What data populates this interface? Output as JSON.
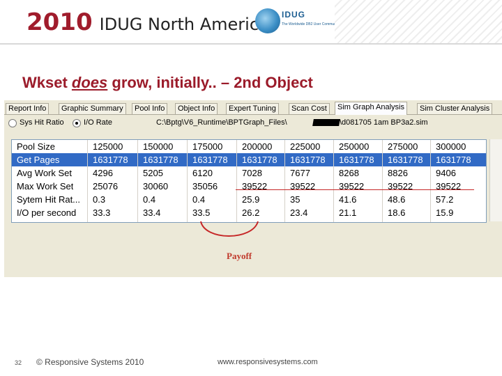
{
  "header": {
    "year": "2010",
    "conference": "IDUG North America",
    "logo_text": "IDUG",
    "logo_tagline": "The Worldwide DB2 User Community"
  },
  "slide": {
    "title_prefix": "Wkset ",
    "title_emphasis": "does",
    "title_suffix": " grow, initially.. – 2nd Object",
    "annotation": "Payoff"
  },
  "app": {
    "tabs": [
      {
        "label": "Report Info"
      },
      {
        "label": "Graphic Summary"
      },
      {
        "label": "Pool Info"
      },
      {
        "label": "Object Info"
      },
      {
        "label": "Expert Tuning"
      },
      {
        "label": "Scan Cost"
      },
      {
        "label": "Sim Graph Analysis"
      },
      {
        "label": "Sim Cluster Analysis"
      }
    ],
    "active_tab": "Sim Graph Analysis",
    "options": {
      "sys_hit_ratio": "Sys Hit Ratio",
      "io_rate": "I/O Rate",
      "selected": "I/O Rate"
    },
    "file_path_start": "C:\\Bptg\\V6_Runtime\\BPTGraph_Files\\",
    "file_path_end": "\\d081705 1am BP3a2.sim",
    "table": {
      "columns": [
        "Pool Size",
        "125000",
        "150000",
        "175000",
        "200000",
        "225000",
        "250000",
        "275000",
        "300000"
      ],
      "rows": [
        [
          "Get Pages",
          "1631778",
          "1631778",
          "1631778",
          "1631778",
          "1631778",
          "1631778",
          "1631778",
          "1631778"
        ],
        [
          "Avg Work Set",
          "4296",
          "5205",
          "6120",
          "7028",
          "7677",
          "8268",
          "8826",
          "9406"
        ],
        [
          "Max Work Set",
          "25076",
          "30060",
          "35056",
          "39522",
          "39522",
          "39522",
          "39522",
          "39522"
        ],
        [
          "Sytem Hit Rat...",
          "0.3",
          "0.4",
          "0.4",
          "25.9",
          "35",
          "41.6",
          "48.6",
          "57.2"
        ],
        [
          "I/O per second",
          "33.3",
          "33.4",
          "33.5",
          "26.2",
          "23.4",
          "21.1",
          "18.6",
          "15.9"
        ]
      ],
      "selected_row": "Get Pages"
    }
  },
  "footer": {
    "page_number": "32",
    "copyright": "© Responsive Systems 2010",
    "url": "www.responsivesystems.com"
  },
  "colors": {
    "brand_red": "#a01c2c",
    "title_red": "#9b1b2a",
    "selection_blue": "#316ac5",
    "annotation_red": "#c62828"
  }
}
